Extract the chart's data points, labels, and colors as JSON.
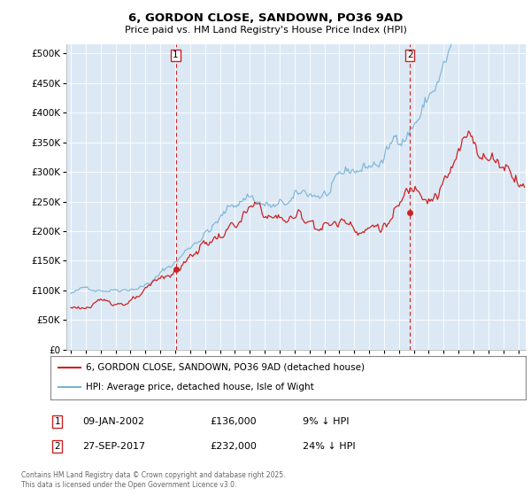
{
  "title": "6, GORDON CLOSE, SANDOWN, PO36 9AD",
  "subtitle": "Price paid vs. HM Land Registry's House Price Index (HPI)",
  "ytick_vals": [
    0,
    50000,
    100000,
    150000,
    200000,
    250000,
    300000,
    350000,
    400000,
    450000,
    500000
  ],
  "ylim": [
    0,
    515000
  ],
  "xlim_start": 1994.7,
  "xlim_end": 2025.5,
  "hpi_color": "#7ab3d4",
  "price_color": "#cc2222",
  "marker1_x": 2002.03,
  "marker2_x": 2017.74,
  "sale1_y": 136000,
  "sale2_y": 232000,
  "legend_line1": "6, GORDON CLOSE, SANDOWN, PO36 9AD (detached house)",
  "legend_line2": "HPI: Average price, detached house, Isle of Wight",
  "copyright_text": "Contains HM Land Registry data © Crown copyright and database right 2025.\nThis data is licensed under the Open Government Licence v3.0.",
  "background_color": "#ffffff",
  "plot_bg_color": "#dce9f5",
  "grid_color": "#ffffff",
  "ann1_date": "09-JAN-2002",
  "ann1_price": "£136,000",
  "ann1_pct": "9% ↓ HPI",
  "ann2_date": "27-SEP-2017",
  "ann2_price": "£232,000",
  "ann2_pct": "24% ↓ HPI"
}
